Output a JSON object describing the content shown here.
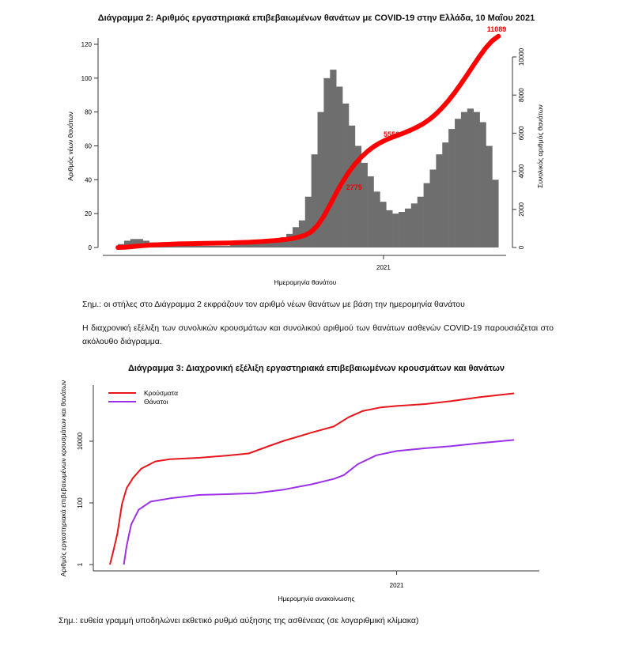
{
  "chart_data": [
    {
      "type": "bar+line",
      "title": "Διάγραμμα 2: Αριθμός εργαστηριακά επιβεβαιωμένων θανάτων με COVID-19 στην Ελλάδα, 10 Μαΐου 2021",
      "xlabel": "Ημερομηνία θανάτου",
      "ylabel_left": "Αριθμός νέων θανάτων",
      "ylabel_right": "Συνολικός αριθμός θανάτων",
      "x_tick_labels": [
        "2021"
      ],
      "x_ticks": [
        "2021-01-01"
      ],
      "x_range": [
        "2020-03-08",
        "2021-05-08"
      ],
      "ylim_left": [
        0,
        120
      ],
      "yticks_left": [
        0,
        20,
        40,
        60,
        80,
        100,
        120
      ],
      "ylim_right": [
        0,
        10000
      ],
      "yticks_right": [
        0,
        2000,
        4000,
        6000,
        8000,
        10000
      ],
      "bar_color": "#6e6e6e",
      "line_color": "#ff0000",
      "bars_weekly_avg_daily": {
        "week_start": "2020-03-09",
        "values": [
          2,
          4,
          5,
          5,
          4,
          3,
          3,
          2,
          2,
          2,
          1,
          1,
          1,
          1,
          1,
          1,
          1,
          1,
          2,
          2,
          2,
          3,
          3,
          4,
          4,
          5,
          6,
          8,
          12,
          16,
          30,
          55,
          80,
          100,
          105,
          95,
          85,
          72,
          60,
          50,
          42,
          33,
          27,
          22,
          20,
          21,
          23,
          26,
          30,
          38,
          46,
          55,
          62,
          70,
          76,
          80,
          82,
          80,
          74,
          60,
          40
        ],
        "labelled": "daily bars labelled with their value"
      },
      "cumulative_total": 11089,
      "annotations": [
        {
          "label": "2775",
          "date": "2020-11-29",
          "value": 2775
        },
        {
          "label": "5556",
          "date": "2021-01-10",
          "value": 5556
        },
        {
          "label": "11089",
          "date": "2021-05-08",
          "value": 11089
        }
      ],
      "grid": false
    },
    {
      "type": "line",
      "title": "Διάγραμμα 3: Διαχρονική εξέλιξη εργαστηριακά επιβεβαιωμένων κρουσμάτων και θανάτων",
      "xlabel": "Ημερομηνία ανακοίνωσης",
      "ylabel": "Αριθμός εργαστηριακά επιβεβαιωμένων κρουσμάτων και θανάτων",
      "yscale": "log",
      "yticks": [
        1,
        100,
        10000
      ],
      "ytick_labels": [
        "1",
        "100",
        "10000"
      ],
      "x_tick_labels": [
        "2021"
      ],
      "x_ticks": [
        "2021-01-01"
      ],
      "x_range": [
        "2020-02-20",
        "2021-05-25"
      ],
      "legend_position": "top-left",
      "grid": false,
      "series": [
        {
          "name": "Κρούσματα",
          "color": "#e8161b",
          "points": [
            [
              "2020-02-26",
              1
            ],
            [
              "2020-03-01",
              3
            ],
            [
              "2020-03-05",
              10
            ],
            [
              "2020-03-10",
              90
            ],
            [
              "2020-03-15",
              300
            ],
            [
              "2020-03-22",
              650
            ],
            [
              "2020-03-31",
              1300
            ],
            [
              "2020-04-15",
              2200
            ],
            [
              "2020-05-01",
              2600
            ],
            [
              "2020-06-01",
              2900
            ],
            [
              "2020-07-01",
              3400
            ],
            [
              "2020-07-25",
              4000
            ],
            [
              "2020-08-15",
              6800
            ],
            [
              "2020-09-01",
              10300
            ],
            [
              "2020-10-01",
              19000
            ],
            [
              "2020-10-25",
              30000
            ],
            [
              "2020-11-10",
              60000
            ],
            [
              "2020-11-25",
              95000
            ],
            [
              "2020-12-15",
              125000
            ],
            [
              "2021-01-01",
              139000
            ],
            [
              "2021-02-01",
              160000
            ],
            [
              "2021-03-01",
              200000
            ],
            [
              "2021-04-01",
              270000
            ],
            [
              "2021-05-08",
              355000
            ]
          ]
        },
        {
          "name": "Θάνατοι",
          "color": "#9b30e8",
          "points": [
            [
              "2020-03-12",
              1
            ],
            [
              "2020-03-15",
              4
            ],
            [
              "2020-03-20",
              20
            ],
            [
              "2020-03-28",
              60
            ],
            [
              "2020-04-10",
              110
            ],
            [
              "2020-05-01",
              140
            ],
            [
              "2020-06-01",
              180
            ],
            [
              "2020-07-01",
              192
            ],
            [
              "2020-08-01",
              206
            ],
            [
              "2020-09-01",
              270
            ],
            [
              "2020-10-01",
              400
            ],
            [
              "2020-10-25",
              600
            ],
            [
              "2020-11-05",
              800
            ],
            [
              "2020-11-20",
              1800
            ],
            [
              "2020-12-10",
              3500
            ],
            [
              "2021-01-01",
              4800
            ],
            [
              "2021-02-01",
              5900
            ],
            [
              "2021-03-01",
              6900
            ],
            [
              "2021-04-01",
              8700
            ],
            [
              "2021-05-08",
              11000
            ]
          ]
        }
      ]
    }
  ],
  "text": {
    "note1": "Σημ.: οι στήλες στο Διάγραμμα 2 εκφράζουν τον αριθμό νέων θανάτων με βάση την ημερομηνία θανάτου",
    "paragraph": "Η διαχρονική εξέλιξη των συνολικών κρουσμάτων και συνολικού αριθμού των θανάτων ασθενών COVID-19 παρουσιάζεται στο ακόλουθο διάγραμμα.",
    "note2": "Σημ.: ευθεία γραμμή υποδηλώνει εκθετικό ρυθμό αύξησης της ασθένειας (σε λογαριθμική κλίμακα)"
  }
}
